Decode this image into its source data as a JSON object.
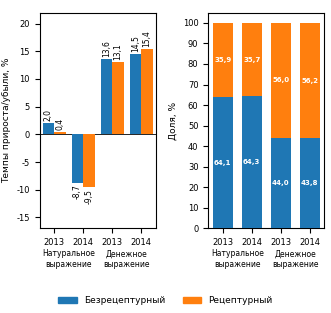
{
  "chart_data": [
    {
      "type": "bar",
      "ylabel": "Темпы прироста/убыли, %",
      "categories": [
        "2013",
        "2014",
        "2013",
        "2014"
      ],
      "annotations": [
        "Натуральное\nвыражение",
        "Денежное\nвыражение"
      ],
      "series": [
        {
          "name": "Безрецептурный",
          "values": [
            2.0,
            -8.7,
            13.6,
            14.5
          ],
          "value_labels": [
            "2,0",
            "-8,7",
            "13,6",
            "14,5"
          ]
        },
        {
          "name": "Рецептурный",
          "values": [
            0.4,
            -9.5,
            13.1,
            15.4
          ],
          "value_labels": [
            "0,4",
            "-9,5",
            "13,1",
            "15,4"
          ]
        }
      ],
      "ylim": [
        -17,
        22
      ],
      "yticks": [
        -15,
        -10,
        -5,
        0,
        5,
        10,
        15,
        20
      ],
      "data_labels": true,
      "legend": "bottom"
    },
    {
      "type": "bar",
      "stacked": true,
      "ylabel": "Доля, %",
      "categories": [
        "2013",
        "2014",
        "2013",
        "2014"
      ],
      "annotations": [
        "Натуральное\nвыражение",
        "Денежное\nвыражение"
      ],
      "series": [
        {
          "name": "Безрецептурный",
          "values": [
            64.1,
            64.3,
            44.0,
            43.8
          ],
          "value_labels": [
            "64,1",
            "64,3",
            "44,0",
            "43,8"
          ]
        },
        {
          "name": "Рецептурный",
          "values": [
            35.9,
            35.7,
            56.0,
            56.2
          ],
          "value_labels": [
            "35,9",
            "35,7",
            "56,0",
            "56,2"
          ]
        }
      ],
      "ylim": [
        0,
        105
      ],
      "yticks": [
        0,
        10,
        20,
        30,
        40,
        50,
        60,
        70,
        80,
        90,
        100
      ],
      "data_labels": true,
      "legend": "bottom"
    }
  ]
}
